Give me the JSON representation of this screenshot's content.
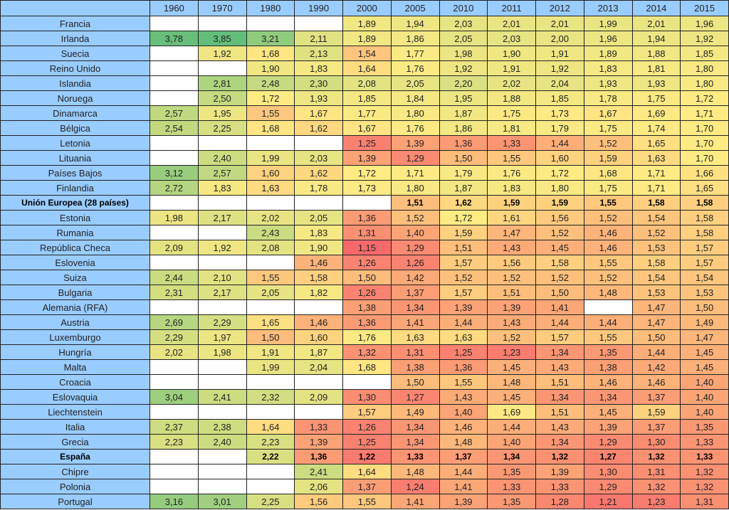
{
  "chart_data": {
    "type": "table",
    "title": "",
    "columns": [
      "1960",
      "1970",
      "1980",
      "1990",
      "2000",
      "2005",
      "2010",
      "2011",
      "2012",
      "2013",
      "2014",
      "2015"
    ],
    "rows": [
      {
        "name": "Francia",
        "bold": false,
        "values": [
          null,
          null,
          null,
          null,
          "1,89",
          "1,94",
          "2,03",
          "2,01",
          "2,01",
          "1,99",
          "2,01",
          "1,96"
        ]
      },
      {
        "name": "Irlanda",
        "bold": false,
        "values": [
          "3,78",
          "3,85",
          "3,21",
          "2,11",
          "1,89",
          "1,86",
          "2,05",
          "2,03",
          "2,00",
          "1,96",
          "1,94",
          "1,92"
        ]
      },
      {
        "name": "Suecia",
        "bold": false,
        "values": [
          null,
          "1,92",
          "1,68",
          "2,13",
          "1,54",
          "1,77",
          "1,98",
          "1,90",
          "1,91",
          "1,89",
          "1,88",
          "1,85"
        ]
      },
      {
        "name": "Reino Unido",
        "bold": false,
        "values": [
          null,
          null,
          "1,90",
          "1,83",
          "1,64",
          "1,76",
          "1,92",
          "1,91",
          "1,92",
          "1,83",
          "1,81",
          "1,80"
        ]
      },
      {
        "name": "Islandia",
        "bold": false,
        "values": [
          null,
          "2,81",
          "2,48",
          "2,30",
          "2,08",
          "2,05",
          "2,20",
          "2,02",
          "2,04",
          "1,93",
          "1,93",
          "1,80"
        ]
      },
      {
        "name": "Noruega",
        "bold": false,
        "values": [
          null,
          "2,50",
          "1,72",
          "1,93",
          "1,85",
          "1,84",
          "1,95",
          "1,88",
          "1,85",
          "1,78",
          "1,75",
          "1,72"
        ]
      },
      {
        "name": "Dinamarca",
        "bold": false,
        "values": [
          "2,57",
          "1,95",
          "1,55",
          "1,67",
          "1,77",
          "1,80",
          "1,87",
          "1,75",
          "1,73",
          "1,67",
          "1,69",
          "1,71"
        ]
      },
      {
        "name": "Bélgica",
        "bold": false,
        "values": [
          "2,54",
          "2,25",
          "1,68",
          "1,62",
          "1,67",
          "1,76",
          "1,86",
          "1,81",
          "1,79",
          "1,75",
          "1,74",
          "1,70"
        ]
      },
      {
        "name": "Letonia",
        "bold": false,
        "values": [
          null,
          null,
          null,
          null,
          "1,25",
          "1,39",
          "1,36",
          "1,33",
          "1,44",
          "1,52",
          "1,65",
          "1,70"
        ]
      },
      {
        "name": "Lituania",
        "bold": false,
        "values": [
          null,
          "2,40",
          "1,99",
          "2,03",
          "1,39",
          "1,29",
          "1,50",
          "1,55",
          "1,60",
          "1,59",
          "1,63",
          "1,70"
        ]
      },
      {
        "name": "Países Bajos",
        "bold": false,
        "values": [
          "3,12",
          "2,57",
          "1,60",
          "1,62",
          "1,72",
          "1,71",
          "1,79",
          "1,76",
          "1,72",
          "1,68",
          "1,71",
          "1,66"
        ]
      },
      {
        "name": "Finlandia",
        "bold": false,
        "values": [
          "2,72",
          "1,83",
          "1,63",
          "1,78",
          "1,73",
          "1,80",
          "1,87",
          "1,83",
          "1,80",
          "1,75",
          "1,71",
          "1,65"
        ]
      },
      {
        "name": "Unión Europea (28 países)",
        "bold": true,
        "values": [
          null,
          null,
          null,
          null,
          null,
          "1,51",
          "1,62",
          "1,59",
          "1,59",
          "1,55",
          "1,58",
          "1,58"
        ]
      },
      {
        "name": "Estonia",
        "bold": false,
        "values": [
          "1,98",
          "2,17",
          "2,02",
          "2,05",
          "1,36",
          "1,52",
          "1,72",
          "1,61",
          "1,56",
          "1,52",
          "1,54",
          "1,58"
        ]
      },
      {
        "name": "Rumania",
        "bold": false,
        "values": [
          null,
          null,
          "2,43",
          "1,83",
          "1,31",
          "1,40",
          "1,59",
          "1,47",
          "1,52",
          "1,46",
          "1,52",
          "1,58"
        ]
      },
      {
        "name": "República Checa",
        "bold": false,
        "values": [
          "2,09",
          "1,92",
          "2,08",
          "1,90",
          "1,15",
          "1,29",
          "1,51",
          "1,43",
          "1,45",
          "1,46",
          "1,53",
          "1,57"
        ]
      },
      {
        "name": "Eslovenia",
        "bold": false,
        "values": [
          null,
          null,
          null,
          "1,46",
          "1,26",
          "1,26",
          "1,57",
          "1,56",
          "1,58",
          "1,55",
          "1,58",
          "1,57"
        ]
      },
      {
        "name": "Suiza",
        "bold": false,
        "values": [
          "2,44",
          "2,10",
          "1,55",
          "1,58",
          "1,50",
          "1,42",
          "1,52",
          "1,52",
          "1,52",
          "1,52",
          "1,54",
          "1,54"
        ]
      },
      {
        "name": "Bulgaria",
        "bold": false,
        "values": [
          "2,31",
          "2,17",
          "2,05",
          "1,82",
          "1,26",
          "1,37",
          "1,57",
          "1,51",
          "1,50",
          "1,48",
          "1,53",
          "1,53"
        ]
      },
      {
        "name": "Alemania (RFA)",
        "bold": false,
        "values": [
          null,
          null,
          null,
          null,
          "1,38",
          "1,34",
          "1,39",
          "1,39",
          "1,41",
          null,
          "1,47",
          "1,50"
        ]
      },
      {
        "name": "Austria",
        "bold": false,
        "values": [
          "2,69",
          "2,29",
          "1,65",
          "1,46",
          "1,36",
          "1,41",
          "1,44",
          "1,43",
          "1,44",
          "1,44",
          "1,47",
          "1,49"
        ]
      },
      {
        "name": "Luxemburgo",
        "bold": false,
        "values": [
          "2,29",
          "1,97",
          "1,50",
          "1,60",
          "1,76",
          "1,63",
          "1,63",
          "1,52",
          "1,57",
          "1,55",
          "1,50",
          "1,47"
        ]
      },
      {
        "name": "Hungría",
        "bold": false,
        "values": [
          "2,02",
          "1,98",
          "1,91",
          "1,87",
          "1,32",
          "1,31",
          "1,25",
          "1,23",
          "1,34",
          "1,35",
          "1,44",
          "1,45"
        ]
      },
      {
        "name": "Malta",
        "bold": false,
        "values": [
          null,
          null,
          "1,99",
          "2,04",
          "1,68",
          "1,38",
          "1,36",
          "1,45",
          "1,43",
          "1,38",
          "1,42",
          "1,45"
        ]
      },
      {
        "name": "Croacia",
        "bold": false,
        "values": [
          null,
          null,
          null,
          null,
          null,
          "1,50",
          "1,55",
          "1,48",
          "1,51",
          "1,46",
          "1,46",
          "1,40"
        ]
      },
      {
        "name": "Eslovaquia",
        "bold": false,
        "values": [
          "3,04",
          "2,41",
          "2,32",
          "2,09",
          "1,30",
          "1,27",
          "1,43",
          "1,45",
          "1,34",
          "1,34",
          "1,37",
          "1,40"
        ]
      },
      {
        "name": "Liechtenstein",
        "bold": false,
        "values": [
          null,
          null,
          null,
          null,
          "1,57",
          "1,49",
          "1,40",
          "1,69",
          "1,51",
          "1,45",
          "1,59",
          "1,40"
        ]
      },
      {
        "name": "Italia",
        "bold": false,
        "values": [
          "2,37",
          "2,38",
          "1,64",
          "1,33",
          "1,26",
          "1,34",
          "1,46",
          "1,44",
          "1,43",
          "1,39",
          "1,37",
          "1,35"
        ]
      },
      {
        "name": "Grecia",
        "bold": false,
        "values": [
          "2,23",
          "2,40",
          "2,23",
          "1,39",
          "1,25",
          "1,34",
          "1,48",
          "1,40",
          "1,34",
          "1,29",
          "1,30",
          "1,33"
        ]
      },
      {
        "name": "España",
        "bold": true,
        "values": [
          null,
          null,
          "2,22",
          "1,36",
          "1,22",
          "1,33",
          "1,37",
          "1,34",
          "1,32",
          "1,27",
          "1,32",
          "1,33"
        ]
      },
      {
        "name": "Chipre",
        "bold": false,
        "values": [
          null,
          null,
          null,
          "2,41",
          "1,64",
          "1,48",
          "1,44",
          "1,35",
          "1,39",
          "1,30",
          "1,31",
          "1,32"
        ]
      },
      {
        "name": "Polonia",
        "bold": false,
        "values": [
          null,
          null,
          null,
          "2,06",
          "1,37",
          "1,24",
          "1,41",
          "1,33",
          "1,33",
          "1,29",
          "1,32",
          "1,32"
        ]
      },
      {
        "name": "Portugal",
        "bold": false,
        "values": [
          "3,16",
          "3,01",
          "2,25",
          "1,56",
          "1,55",
          "1,41",
          "1,39",
          "1,35",
          "1,28",
          "1,21",
          "1,23",
          "1,31"
        ]
      }
    ],
    "color_scale": {
      "min_color": "#f8696b",
      "mid_color": "#ffeb84",
      "max_color": "#63be7b",
      "min": 1.15,
      "mid": 1.7,
      "max": 3.85
    },
    "header_color": "#99ccff"
  }
}
